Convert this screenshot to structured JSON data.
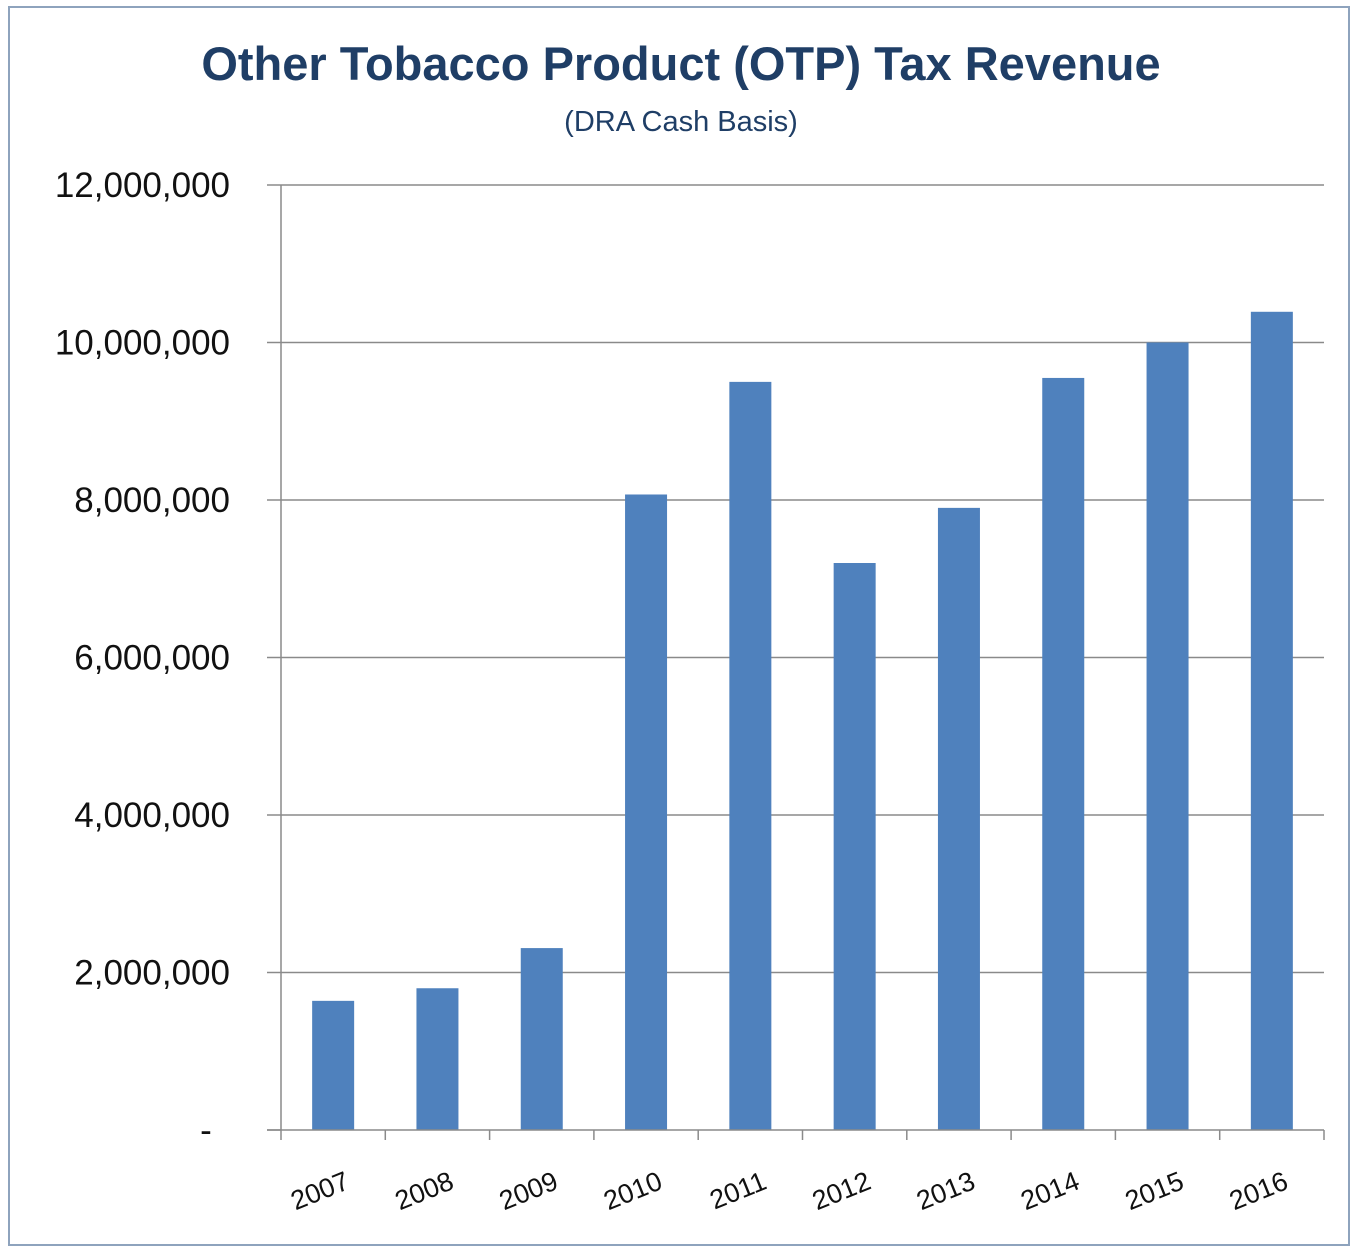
{
  "chart_data": {
    "type": "bar",
    "title": "Other Tobacco Product (OTP) Tax Revenue",
    "subtitle": "(DRA Cash Basis)",
    "xlabel": "",
    "ylabel": "",
    "categories": [
      "2007",
      "2008",
      "2009",
      "2010",
      "2011",
      "2012",
      "2013",
      "2014",
      "2015",
      "2016"
    ],
    "values": [
      1640000,
      1800000,
      2310000,
      8070000,
      9500000,
      7200000,
      7900000,
      9550000,
      10000000,
      10390000
    ],
    "ylim": [
      0,
      12000000
    ],
    "yticks": [
      0,
      2000000,
      4000000,
      6000000,
      8000000,
      10000000,
      12000000
    ],
    "ytick_labels": [
      "-",
      "2,000,000",
      "4,000,000",
      "6,000,000",
      "8,000,000",
      "10,000,000",
      "12,000,000"
    ],
    "grid": true,
    "legend": "none",
    "bar_color": "#4f81bd",
    "title_color": "#1f3e66"
  }
}
